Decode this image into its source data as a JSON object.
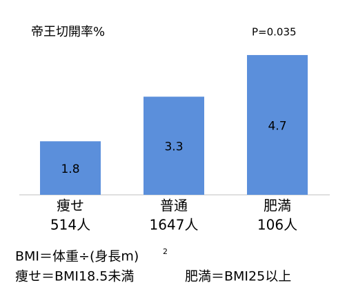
{
  "chart_data": {
    "type": "bar",
    "title": "帝王切開率%",
    "annotation": "P=0.035",
    "categories": [
      "痩せ",
      "普通",
      "肥満"
    ],
    "category_counts": [
      "514人",
      "1647人",
      "106人"
    ],
    "values": [
      1.8,
      3.3,
      4.7
    ],
    "color": "#5b8fdb",
    "notes": [
      "BMI＝体重÷(身長m)",
      "2",
      "痩せ＝BMI18.5未満",
      "肥満＝BMI25以上"
    ]
  }
}
